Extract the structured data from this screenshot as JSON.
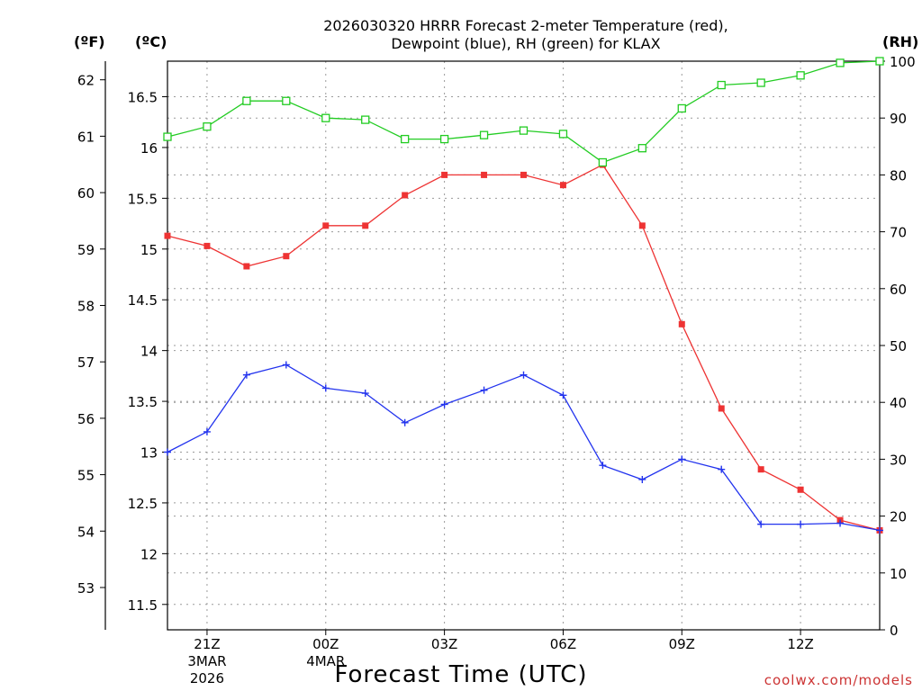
{
  "chart_data": {
    "type": "line",
    "title_line1": "2026030320 HRRR Forecast 2-meter Temperature (red),",
    "title_line2": "Dewpoint (blue), RH (green) for KLAX",
    "unit_labels": {
      "fahrenheit": "(ºF)",
      "celsius": "(ºC)",
      "rh": "(RH)"
    },
    "xlabel": "Forecast Time (UTC)",
    "credit": "coolwx.com/models",
    "x_range_hours": [
      0,
      18
    ],
    "x_ticks": [
      {
        "hour": 1,
        "line1": "21Z",
        "line2": "3MAR",
        "line3": "2026"
      },
      {
        "hour": 4,
        "line1": "00Z",
        "line2": "4MAR",
        "line3": ""
      },
      {
        "hour": 7,
        "line1": "03Z",
        "line2": "",
        "line3": ""
      },
      {
        "hour": 10,
        "line1": "06Z",
        "line2": "",
        "line3": ""
      },
      {
        "hour": 13,
        "line1": "09Z",
        "line2": "",
        "line3": ""
      },
      {
        "hour": 16,
        "line1": "12Z",
        "line2": "",
        "line3": ""
      }
    ],
    "y_left_celsius": {
      "range": [
        11.25,
        16.85
      ],
      "ticks": [
        "11.5",
        "12",
        "12.5",
        "13",
        "13.5",
        "14",
        "14.5",
        "15",
        "15.5",
        "16",
        "16.5"
      ]
    },
    "y_left_fahrenheit": {
      "ticks": [
        "53",
        "54",
        "55",
        "56",
        "57",
        "58",
        "59",
        "60",
        "61",
        "62"
      ]
    },
    "y_right_rh": {
      "range": [
        0,
        100
      ],
      "ticks": [
        "0",
        "10",
        "20",
        "30",
        "40",
        "50",
        "60",
        "70",
        "80",
        "90",
        "100"
      ]
    },
    "series": [
      {
        "name": "Temperature",
        "axis": "celsius",
        "color": "#ee3333",
        "marker": "filled-square",
        "x": [
          0,
          1,
          2,
          3,
          4,
          5,
          6,
          7,
          8,
          9,
          10,
          11,
          12,
          13,
          14,
          15,
          16,
          17,
          18
        ],
        "values": [
          15.13,
          15.03,
          14.83,
          14.93,
          15.23,
          15.23,
          15.53,
          15.73,
          15.73,
          15.73,
          15.63,
          15.83,
          15.23,
          14.26,
          13.43,
          12.83,
          12.63,
          12.33,
          12.23
        ]
      },
      {
        "name": "Dewpoint",
        "axis": "celsius",
        "color": "#2233ee",
        "marker": "plus",
        "x": [
          0,
          1,
          2,
          3,
          4,
          5,
          6,
          7,
          8,
          9,
          10,
          11,
          12,
          13,
          14,
          15,
          16,
          17,
          18
        ],
        "values": [
          13.0,
          13.2,
          13.76,
          13.86,
          13.63,
          13.58,
          13.29,
          13.47,
          13.61,
          13.76,
          13.56,
          12.87,
          12.73,
          12.93,
          12.83,
          12.29,
          12.29,
          12.3,
          12.23
        ]
      },
      {
        "name": "RH",
        "axis": "rh",
        "color": "#22cc22",
        "marker": "open-square",
        "x": [
          0,
          1,
          2,
          3,
          4,
          5,
          6,
          7,
          8,
          9,
          10,
          11,
          12,
          13,
          14,
          15,
          16,
          17,
          18
        ],
        "values": [
          86.7,
          88.5,
          93.0,
          93.0,
          90.0,
          89.7,
          86.3,
          86.3,
          87.0,
          87.8,
          87.2,
          82.2,
          84.7,
          91.7,
          95.8,
          96.2,
          97.5,
          99.7,
          100.0
        ]
      }
    ]
  }
}
